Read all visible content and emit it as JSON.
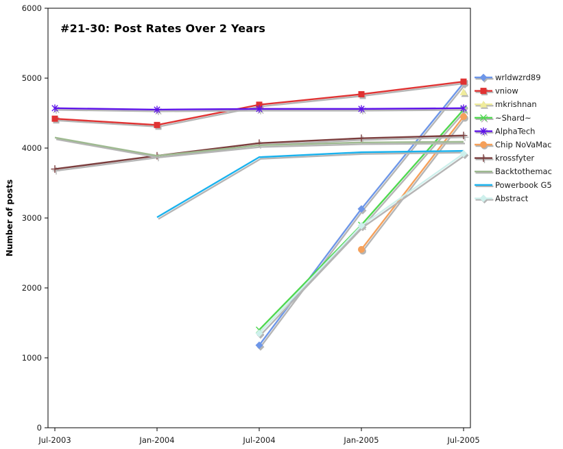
{
  "chart_data": {
    "type": "line",
    "title": "#21-30: Post Rates Over 2 Years",
    "xlabel": "",
    "ylabel": "Number of posts",
    "categories": [
      "Jul-2003",
      "Jan-2004",
      "Jul-2004",
      "Jan-2005",
      "Jul-2005"
    ],
    "ylim": [
      0,
      6000
    ],
    "ytick_step": 1000,
    "yticks": [
      0,
      1000,
      2000,
      3000,
      4000,
      5000,
      6000
    ],
    "grid": false,
    "legend_position": "right",
    "background_color": "#FFFFFF",
    "axis_color": "#000000",
    "text_color": "#1A1A1A",
    "shadow_color": "#B5B5B5",
    "series": [
      {
        "name": "wrldwzrd89",
        "color": "#6D96E8",
        "marker": "diamond",
        "values": [
          null,
          null,
          1180,
          3130,
          4930
        ]
      },
      {
        "name": "vniow",
        "color": "#E03232",
        "marker": "square",
        "values": [
          4420,
          4330,
          4620,
          4770,
          4950
        ]
      },
      {
        "name": "mkrishnan",
        "color": "#F0EC9C",
        "marker": "triangle",
        "values": [
          null,
          null,
          null,
          null,
          4800
        ]
      },
      {
        "name": "~Shard~",
        "color": "#4FD84F",
        "marker": "x",
        "values": [
          null,
          null,
          1400,
          2900,
          4550
        ]
      },
      {
        "name": "AlphaTech",
        "color": "#5E13EA",
        "marker": "asterisk",
        "values": [
          4570,
          4550,
          4560,
          4560,
          4570
        ]
      },
      {
        "name": "Chip NoVaMac",
        "color": "#F5A05A",
        "marker": "circle",
        "values": [
          null,
          null,
          null,
          2550,
          4450
        ]
      },
      {
        "name": "krossfyter",
        "color": "#7B3D3D",
        "marker": "plus",
        "values": [
          3700,
          3890,
          4070,
          4140,
          4180
        ]
      },
      {
        "name": "Backtothemac",
        "color": "#9EBA90",
        "marker": "none",
        "values": [
          4150,
          3890,
          4040,
          4080,
          4090
        ]
      },
      {
        "name": "Powerbook G5",
        "color": "#19B2EE",
        "marker": "none",
        "values": [
          null,
          3010,
          3870,
          3940,
          3960
        ]
      },
      {
        "name": "Abstract",
        "color": "#CEF0EC",
        "marker": "diamond",
        "values": [
          null,
          null,
          1350,
          2890,
          3920
        ]
      }
    ]
  }
}
